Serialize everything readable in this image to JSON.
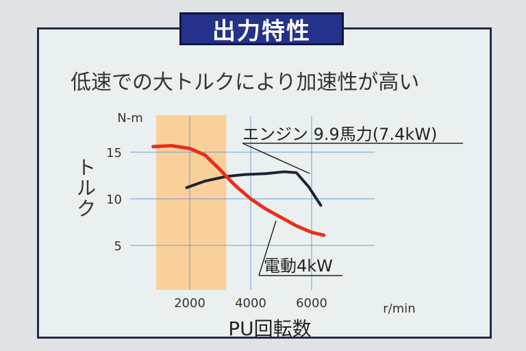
{
  "slide": {
    "title": "出力特性",
    "subtitle": "低速での大トルクにより加速性が高い"
  },
  "chart_data": {
    "type": "line",
    "xlabel": "PU回転数",
    "x_unit": "r/min",
    "ylabel": "トルク",
    "y_unit": "N-m",
    "xlim": [
      0,
      7000
    ],
    "ylim": [
      0,
      18
    ],
    "x_ticks": [
      2000,
      4000,
      6000
    ],
    "x_tick_labels": [
      "2000",
      "4000",
      "6000"
    ],
    "y_ticks": [
      5,
      10,
      15
    ],
    "y_tick_labels": [
      "5",
      "10",
      "15"
    ],
    "grid": true,
    "highlight_band": {
      "x": [
        900,
        3200
      ],
      "color": "#f9cf9a"
    },
    "series": [
      {
        "name": "エンジン 9.9馬力(7.4kW)",
        "color": "#1d2236",
        "x": [
          1900,
          2500,
          3200,
          3800,
          4500,
          5100,
          5500,
          5900,
          6300
        ],
        "y": [
          11.2,
          11.9,
          12.4,
          12.6,
          12.7,
          12.9,
          12.8,
          11.3,
          9.3
        ]
      },
      {
        "name": "電動4kW",
        "color": "#e6301b",
        "x": [
          800,
          1400,
          2000,
          2500,
          3000,
          3500,
          4000,
          4500,
          5000,
          5500,
          6000,
          6400
        ],
        "y": [
          15.6,
          15.7,
          15.4,
          14.7,
          13.1,
          11.4,
          10.0,
          8.9,
          8.0,
          7.1,
          6.4,
          6.1
        ]
      }
    ]
  }
}
